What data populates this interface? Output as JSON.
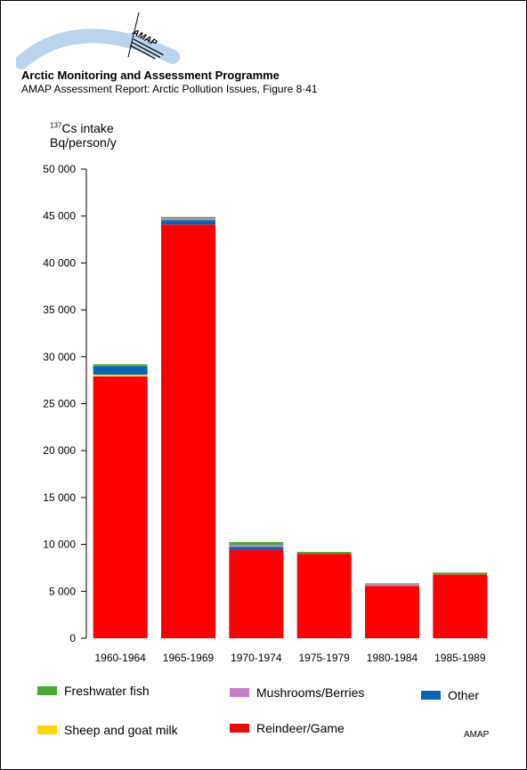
{
  "header": {
    "logo_text": "AMAP",
    "org": "Arctic Monitoring and Assessment Programme",
    "subtitle": "AMAP Assessment Report: Arctic Pollution Issues, Figure 8·41"
  },
  "y_axis": {
    "label_sup": "137",
    "label_line1": "Cs intake",
    "label_line2": "Bq/person/y"
  },
  "credit": "AMAP",
  "colors": {
    "Reindeer/Game": "#ff0000",
    "Sheep and goat milk": "#ffd700",
    "Other": "#0a64b4",
    "Mushrooms/Berries": "#c87dc8",
    "Freshwater fish": "#4ba832"
  },
  "chart_data": {
    "type": "bar",
    "stacked": true,
    "categories": [
      "1960-1964",
      "1965-1969",
      "1970-1974",
      "1975-1979",
      "1980-1984",
      "1985-1989"
    ],
    "series": [
      {
        "name": "Reindeer/Game",
        "values": [
          27900,
          44100,
          9400,
          9000,
          5550,
          6800
        ]
      },
      {
        "name": "Sheep and goat milk",
        "values": [
          200,
          0,
          0,
          0,
          0,
          0
        ]
      },
      {
        "name": "Other",
        "values": [
          900,
          450,
          350,
          0,
          0,
          0
        ]
      },
      {
        "name": "Mushrooms/Berries",
        "values": [
          0,
          200,
          200,
          0,
          200,
          0
        ]
      },
      {
        "name": "Freshwater fish",
        "values": [
          200,
          150,
          300,
          200,
          100,
          200
        ]
      }
    ],
    "ylim": [
      0,
      50000
    ],
    "yticks": [
      "0",
      "5 000",
      "10 000",
      "15 000",
      "20 000",
      "25 000",
      "30 000",
      "35 000",
      "40 000",
      "45 000",
      "50 000"
    ],
    "legend": [
      {
        "label": "Freshwater fish"
      },
      {
        "label": "Mushrooms/Berries"
      },
      {
        "label": "Other"
      },
      {
        "label": "Sheep and goat milk"
      },
      {
        "label": "Reindeer/Game"
      }
    ]
  }
}
